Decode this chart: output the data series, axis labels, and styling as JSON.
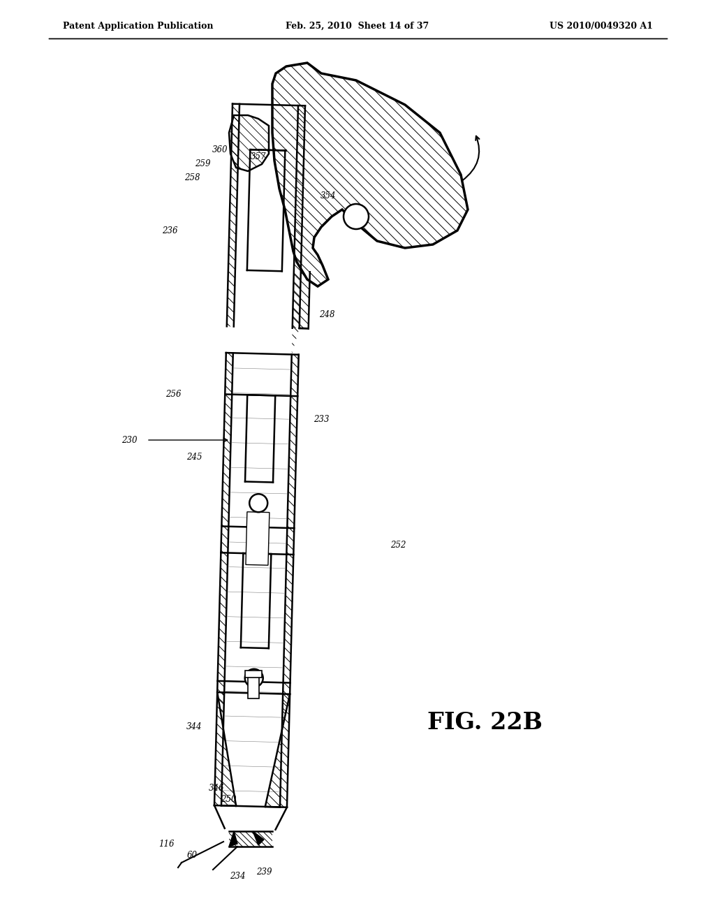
{
  "title_left": "Patent Application Publication",
  "title_center": "Feb. 25, 2010  Sheet 14 of 37",
  "title_right": "US 2010/0049320 A1",
  "fig_label": "FIG. 22B",
  "background_color": "#ffffff",
  "line_color": "#000000",
  "header_fontsize": 9,
  "label_fontsize": 8,
  "fig_label_fontsize": 24
}
